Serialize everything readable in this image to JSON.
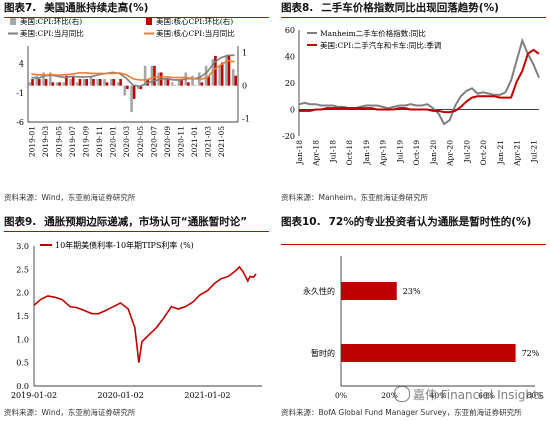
{
  "charts": [
    {
      "number": "图表7.",
      "title": "美国通胀持续走高(%)",
      "source": "资料来源：Wind，东亚前海证券研究所"
    },
    {
      "number": "图表8.",
      "title": "二手车价格指数同比出现回落趋势(%)",
      "source": "资料来源：Manheim，东亚前海证券研究所"
    },
    {
      "number": "图表9.",
      "title": "通胀预期边际递减，市场认可“通胀暂时论”",
      "source": "资料来源：Wind，东亚前海证券研究所"
    },
    {
      "number": "图表10.",
      "title": "72%的专业投资者认为通胀是暂时性的(%)",
      "source": "资料来源：BofA Global Fund Manager Survey，东亚前海证券研究所"
    }
  ],
  "watermark": {
    "text": "嘉伟 Financial Insights"
  },
  "colors": {
    "accent": "#c00000",
    "grey": "#7f7f7f",
    "orange": "#ed7d31",
    "red": "#c00000"
  },
  "chart_data": [
    {
      "type": "bar",
      "title": "",
      "legend": [
        "美国:CPI:环比(右)",
        "美国:核心CPI:环比(右)",
        "美国:CPI:当月同比",
        "美国:核心CPI:当月同比"
      ],
      "legend_placement": "top",
      "categories": [
        "2019-01",
        "2019-02",
        "2019-03",
        "2019-04",
        "2019-05",
        "2019-06",
        "2019-07",
        "2019-08",
        "2019-09",
        "2019-10",
        "2019-11",
        "2019-12",
        "2020-01",
        "2020-02",
        "2020-03",
        "2020-04",
        "2020-05",
        "2020-06",
        "2020-07",
        "2020-08",
        "2020-09",
        "2020-10",
        "2020-11",
        "2020-12",
        "2021-01",
        "2021-02",
        "2021-03",
        "2021-04",
        "2021-05",
        "2021-06",
        "2021-07"
      ],
      "tick_labels": [
        "2019-01",
        "2019-03",
        "2019-05",
        "2019-07",
        "2019-09",
        "2019-11",
        "2020-01",
        "2020-03",
        "2020-05",
        "2020-07",
        "2020-09",
        "2020-11",
        "2021-01",
        "2021-03",
        "2021-05"
      ],
      "yleft_ticks": [
        -6,
        -1,
        4
      ],
      "ylim_left": [
        -6,
        7
      ],
      "yright_ticks": [
        -1,
        0,
        1
      ],
      "ylim_right": [
        -1.1,
        1.2
      ],
      "series": [
        {
          "name": "美国:CPI:环比(右)",
          "axis": "right",
          "kind": "bar",
          "values": [
            0.1,
            0.3,
            0.4,
            0.4,
            0.1,
            0.1,
            0.2,
            0.1,
            0.2,
            0.3,
            0.2,
            0.2,
            0.2,
            0.1,
            -0.3,
            -0.8,
            -0.1,
            0.6,
            0.6,
            0.4,
            0.2,
            0.1,
            0.2,
            0.4,
            0.3,
            0.4,
            0.6,
            0.8,
            0.6,
            0.9,
            0.5
          ]
        },
        {
          "name": "美国:核心CPI:环比(右)",
          "axis": "right",
          "kind": "bar",
          "values": [
            0.2,
            0.2,
            0.2,
            0.1,
            0.1,
            0.3,
            0.3,
            0.2,
            0.2,
            0.2,
            0.2,
            0.1,
            0.2,
            0.2,
            -0.1,
            -0.4,
            -0.1,
            0.2,
            0.6,
            0.4,
            0.2,
            0.0,
            0.2,
            0.1,
            0.0,
            0.1,
            0.3,
            0.9,
            0.7,
            0.9,
            0.3
          ]
        },
        {
          "name": "美国:CPI:当月同比",
          "axis": "left",
          "kind": "line",
          "values": [
            1.6,
            1.5,
            1.9,
            2.0,
            1.8,
            1.6,
            1.8,
            1.7,
            1.7,
            1.8,
            2.1,
            2.3,
            2.5,
            2.3,
            1.5,
            0.3,
            0.1,
            0.6,
            1.0,
            1.3,
            1.4,
            1.2,
            1.2,
            1.4,
            1.4,
            1.7,
            2.6,
            4.2,
            5.0,
            5.4,
            5.4
          ]
        },
        {
          "name": "美国:核心CPI:当月同比",
          "axis": "left",
          "kind": "line",
          "values": [
            2.2,
            2.1,
            2.0,
            2.1,
            2.0,
            2.1,
            2.2,
            2.4,
            2.4,
            2.3,
            2.3,
            2.3,
            2.3,
            2.4,
            2.1,
            1.4,
            1.2,
            1.2,
            1.6,
            1.7,
            1.7,
            1.6,
            1.6,
            1.6,
            1.4,
            1.3,
            1.6,
            3.0,
            3.8,
            4.5,
            4.3
          ]
        }
      ]
    },
    {
      "type": "line",
      "title": "",
      "legend": [
        "Manheim二手车价格指数:同比",
        "美国:CPI:二手汽车和卡车:同比:季调"
      ],
      "legend_placement": "top-left",
      "x": [
        "Jan-18",
        "Apr-18",
        "Jul-18",
        "Oct-18",
        "Jan-19",
        "Apr-19",
        "Jul-19",
        "Oct-19",
        "Jan-20",
        "Apr-20",
        "Jul-20",
        "Oct-20",
        "Jan-21",
        "Apr-21",
        "Jul-21"
      ],
      "tick_labels": [
        "Jan-18",
        "Apr-18",
        "Jul-18",
        "Oct-18",
        "Jan-19",
        "Apr-19",
        "Jul-19",
        "Oct-19",
        "Jan-20",
        "Apr-20",
        "Jul-20",
        "Oct-20",
        "Jan-21",
        "Apr-21",
        "Jul-21"
      ],
      "yticks": [
        -20,
        0,
        20,
        40,
        60
      ],
      "ylim": [
        -20,
        60
      ],
      "series": [
        {
          "name": "Manheim二手车价格指数:同比",
          "values": [
            [
              0,
              4
            ],
            [
              1,
              5
            ],
            [
              2,
              4
            ],
            [
              3,
              4
            ],
            [
              4,
              3
            ],
            [
              5,
              3
            ],
            [
              6,
              3
            ],
            [
              7,
              2
            ],
            [
              8,
              2
            ],
            [
              9,
              1
            ],
            [
              10,
              1
            ],
            [
              11,
              2
            ],
            [
              12,
              3
            ],
            [
              13,
              3
            ],
            [
              14,
              3
            ],
            [
              15,
              2
            ],
            [
              16,
              1
            ],
            [
              17,
              2
            ],
            [
              18,
              3
            ],
            [
              19,
              3
            ],
            [
              20,
              4
            ],
            [
              21,
              3
            ],
            [
              22,
              3
            ],
            [
              23,
              4
            ],
            [
              24,
              1
            ],
            [
              25,
              -3
            ],
            [
              26,
              -11
            ],
            [
              27,
              -8
            ],
            [
              28,
              3
            ],
            [
              29,
              10
            ],
            [
              30,
              14
            ],
            [
              31,
              16
            ],
            [
              32,
              12
            ],
            [
              33,
              13
            ],
            [
              34,
              12
            ],
            [
              35,
              11
            ],
            [
              36,
              11
            ],
            [
              37,
              13
            ],
            [
              38,
              22
            ],
            [
              39,
              37
            ],
            [
              40,
              52
            ],
            [
              41,
              42
            ],
            [
              42,
              34
            ],
            [
              43,
              24
            ]
          ]
        },
        {
          "name": "美国:CPI:二手汽车和卡车:同比:季调",
          "values": [
            [
              0,
              -1
            ],
            [
              1,
              -1
            ],
            [
              2,
              -1
            ],
            [
              3,
              0
            ],
            [
              4,
              0
            ],
            [
              5,
              1
            ],
            [
              6,
              1
            ],
            [
              7,
              1
            ],
            [
              8,
              1
            ],
            [
              9,
              1
            ],
            [
              10,
              1
            ],
            [
              11,
              1
            ],
            [
              12,
              1
            ],
            [
              13,
              1
            ],
            [
              14,
              0
            ],
            [
              15,
              0
            ],
            [
              16,
              0
            ],
            [
              17,
              0
            ],
            [
              18,
              1
            ],
            [
              19,
              1
            ],
            [
              20,
              0
            ],
            [
              21,
              0
            ],
            [
              22,
              0
            ],
            [
              23,
              0
            ],
            [
              24,
              -1
            ],
            [
              25,
              -1
            ],
            [
              26,
              -2
            ],
            [
              27,
              -2
            ],
            [
              28,
              -1
            ],
            [
              29,
              2
            ],
            [
              30,
              6
            ],
            [
              31,
              9
            ],
            [
              32,
              10
            ],
            [
              33,
              10
            ],
            [
              34,
              10
            ],
            [
              35,
              10
            ],
            [
              36,
              9
            ],
            [
              37,
              9
            ],
            [
              38,
              9
            ],
            [
              39,
              21
            ],
            [
              40,
              29
            ],
            [
              41,
              42
            ],
            [
              42,
              45
            ],
            [
              43,
              42
            ]
          ]
        }
      ]
    },
    {
      "type": "line",
      "title": "",
      "legend": [
        "10年期美债利率-10年期TIPS利率 (%)"
      ],
      "legend_placement": "top-left",
      "x_ticks": [
        "2019-01-02",
        "2020-01-02",
        "2021-01-02"
      ],
      "yticks": [
        0,
        0.5,
        1,
        1.5,
        2,
        2.5,
        3
      ],
      "ylim": [
        0,
        3
      ],
      "series": [
        {
          "name": "10年期美债利率-10年期TIPS利率 (%)",
          "values": [
            [
              "2019-01-02",
              1.73
            ],
            [
              "2019-02-01",
              1.86
            ],
            [
              "2019-03-01",
              1.93
            ],
            [
              "2019-04-01",
              1.9
            ],
            [
              "2019-05-01",
              1.85
            ],
            [
              "2019-06-03",
              1.7
            ],
            [
              "2019-07-01",
              1.68
            ],
            [
              "2019-08-01",
              1.62
            ],
            [
              "2019-09-03",
              1.55
            ],
            [
              "2019-10-01",
              1.55
            ],
            [
              "2019-11-01",
              1.62
            ],
            [
              "2019-12-02",
              1.7
            ],
            [
              "2020-01-02",
              1.78
            ],
            [
              "2020-02-03",
              1.65
            ],
            [
              "2020-03-02",
              1.25
            ],
            [
              "2020-03-19",
              0.5
            ],
            [
              "2020-04-01",
              0.95
            ],
            [
              "2020-05-01",
              1.1
            ],
            [
              "2020-06-01",
              1.25
            ],
            [
              "2020-07-01",
              1.45
            ],
            [
              "2020-08-03",
              1.7
            ],
            [
              "2020-09-01",
              1.65
            ],
            [
              "2020-10-01",
              1.7
            ],
            [
              "2020-11-02",
              1.8
            ],
            [
              "2020-12-01",
              1.95
            ],
            [
              "2021-01-04",
              2.05
            ],
            [
              "2021-02-01",
              2.2
            ],
            [
              "2021-03-01",
              2.3
            ],
            [
              "2021-04-01",
              2.35
            ],
            [
              "2021-05-03",
              2.48
            ],
            [
              "2021-05-17",
              2.55
            ],
            [
              "2021-06-01",
              2.45
            ],
            [
              "2021-06-21",
              2.25
            ],
            [
              "2021-07-01",
              2.35
            ],
            [
              "2021-07-15",
              2.33
            ],
            [
              "2021-07-26",
              2.4
            ]
          ]
        }
      ]
    },
    {
      "type": "bar",
      "orientation": "horizontal",
      "title": "",
      "categories": [
        "永久性的",
        "暂时的"
      ],
      "values": [
        23,
        72
      ],
      "value_labels": [
        "23%",
        "72%"
      ],
      "x_ticks": [
        "0%",
        "20%",
        "40%",
        "60%",
        "80%"
      ],
      "xlim": [
        0,
        80
      ],
      "color": "#c00000"
    }
  ]
}
